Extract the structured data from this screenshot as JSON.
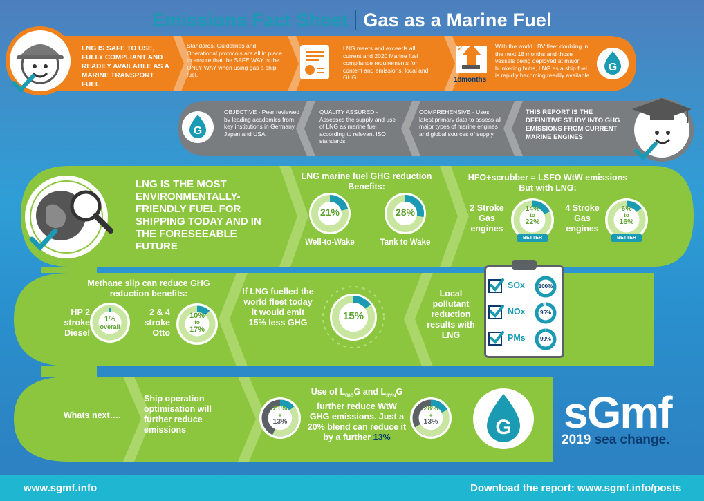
{
  "header": {
    "title_part1": "Emissions Fact Sheet",
    "title_part2": "Gas as a Marine Fuel"
  },
  "orange_band": {
    "safe_text": "LNG IS SAFE TO USE, FULLY COMPLIANT AND READILY AVAILABLE AS A MARINE TRANSPORT FUEL",
    "standards_text": "Standards, Guidelines and Operational protocols are all in place to ensure that the SAFE WAY is the ONLY WAY when using gas a ship fuel.",
    "compliance_text": "LNG meets and exceeds all current and 2020 Marine fuel compliance requirements for content and emissions, local and GHG.",
    "months_number": "2",
    "months_label": "18months",
    "fleet_text": "With the world LBV fleet doubling in the next 18 months and those vessels being deployed at major bunkering hubs, LNG as a ship fuel is rapidly becoming readily available."
  },
  "grey_band": {
    "objective_text": "OBJECTIVE - Peer reviewed by leading academics from key institutions in Germany, Japan and USA.",
    "quality_text": "QUALITY ASSURED - Assesses the supply and use of LNG as marine fuel according to relevant ISO standards.",
    "comprehensive_text": "COMPREHENSIVE - Uses latest primary data to assess all major types of marine engines and global sources of supply.",
    "report_text": "THIS REPORT IS THE DEFINITIVE STUDY INTO GHG EMISSIONS FROM CURRENT MARINE ENGINES"
  },
  "green_row1": {
    "headline": "LNG IS THE MOST ENVIRONMENTALLY-FRIENDLY FUEL FOR SHIPPING TODAY AND IN THE FORESEEABLE FUTURE",
    "ghg_title": "LNG marine fuel GHG reduction Benefits:",
    "wtw_value": "21%",
    "wtw_label": "Well-to-Wake",
    "wtw_fraction": 0.21,
    "ttw_value": "28%",
    "ttw_label": "Tank to Wake",
    "ttw_fraction": 0.28,
    "hfo_title": "HFO+scrubber = LSFO WtW emissions But with LNG:",
    "two_stroke_label": "2 Stroke Gas engines",
    "two_stroke_from": "14%",
    "two_stroke_to": "22%",
    "four_stroke_label": "4 Stroke Gas engines",
    "four_stroke_from": "6%",
    "four_stroke_to": "16%",
    "to_word": "to",
    "better_label": "BETTER"
  },
  "green_row2": {
    "methane_title": "Methane slip can reduce GHG reduction benefits:",
    "hp2_label": "HP 2 stroke Diesel",
    "hp2_value": "1%",
    "hp2_sub": "overall",
    "otto_label": "2 & 4 stroke Otto",
    "otto_from": "10%",
    "otto_to": "17%",
    "fleet_text": "If LNG fuelled the world fleet today it would emit 15% less GHG",
    "fleet_value": "15%",
    "fleet_fraction": 0.15,
    "local_text": "Local pollutant reduction results with LNG",
    "pollutants": [
      {
        "name": "SOx",
        "value": "100%",
        "fraction": 1.0
      },
      {
        "name": "NOx",
        "value": "95%",
        "fraction": 0.95
      },
      {
        "name": "PMs",
        "value": "99%",
        "fraction": 0.99
      }
    ]
  },
  "green_row3": {
    "whats_next": "Whats next….",
    "ship_text": "Ship operation optimisation will further reduce emissions",
    "ring1_top": "21%",
    "ring1_plus": "+",
    "ring1_bottom": "13%",
    "biosyn_line1_a": "Use of L",
    "biosyn_sub1": "BIO",
    "biosyn_line1_b": "G and L",
    "biosyn_sub2": "SYN",
    "biosyn_line1_c": "G",
    "biosyn_rest": "further reduce WtW GHG emissions. Just a 20% blend can reduce it by a further",
    "biosyn_value": "13%",
    "ring2_top": "28%",
    "ring2_plus": "+",
    "ring2_bottom": "13%"
  },
  "brand": {
    "logo_word": "sGmf",
    "year": "2019",
    "tagline": "sea change."
  },
  "footer": {
    "left_url": "www.sgmf.info",
    "right_text": "Download the report: www.sgmf.info/posts"
  },
  "icons": {
    "hardhat_face": "hardhat-face-icon",
    "certificate": "certificate-icon",
    "growth_chart": "growth-chart-icon",
    "g_logo": "g-drop-logo-icon",
    "graduate_face": "graduate-face-icon",
    "globe_magnifier": "globe-magnifier-icon",
    "clipboard": "clipboard-checklist-icon"
  },
  "colors": {
    "orange": "#f0821e",
    "grey": "#7a7d80",
    "green": "#8cc63f",
    "teal": "#1a9bb3",
    "navy": "#0b3b6e"
  }
}
